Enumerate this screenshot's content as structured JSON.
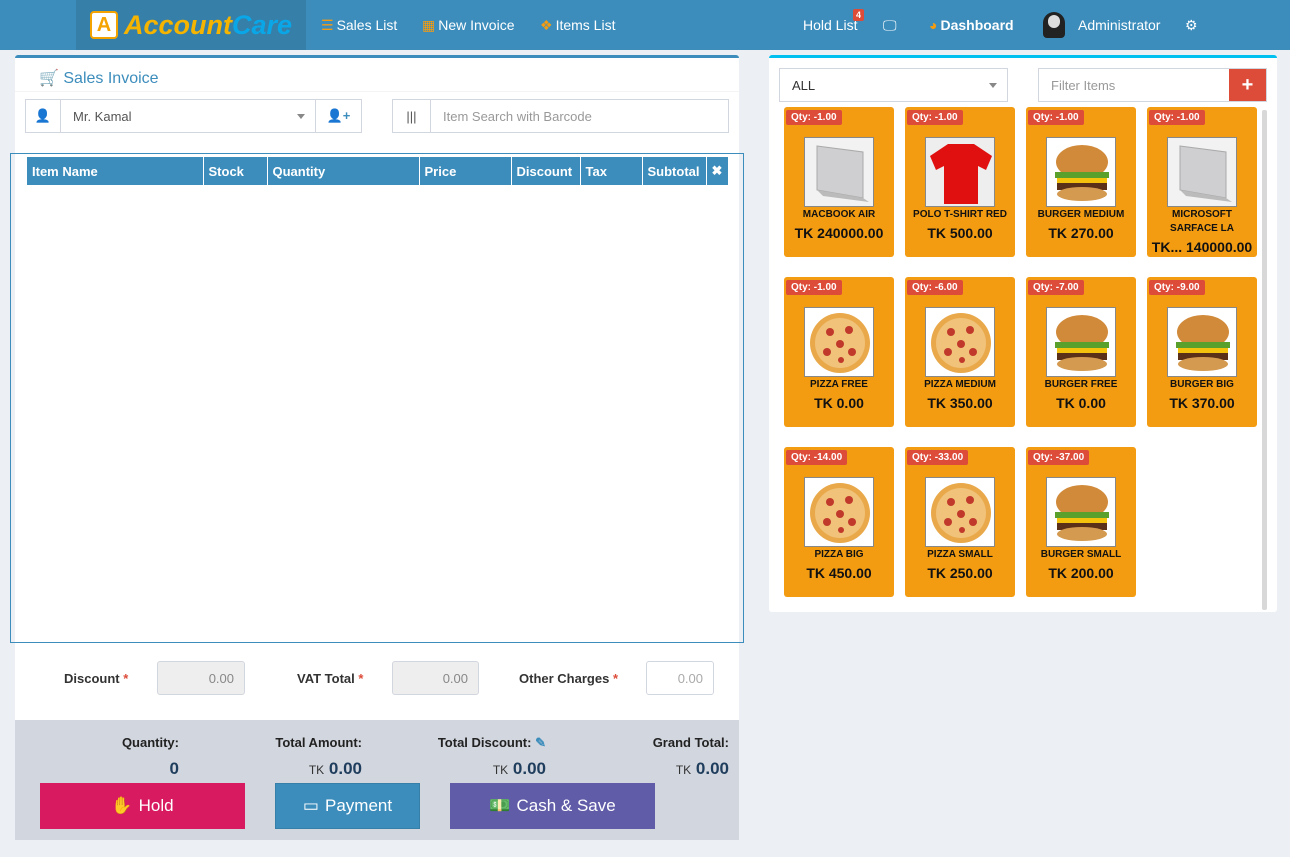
{
  "app": {
    "logo_a": "Account",
    "logo_b": "Care"
  },
  "nav": {
    "sales_list": "Sales List",
    "new_invoice": "New Invoice",
    "items_list": "Items List",
    "hold_list": "Hold List",
    "hold_count": "4",
    "dashboard": "Dashboard",
    "user": "Administrator"
  },
  "invoice": {
    "title": "Sales Invoice",
    "customer": "Mr. Kamal",
    "barcode_placeholder": "Item Search with Barcode",
    "columns": [
      "Item Name",
      "Stock",
      "Quantity",
      "Price",
      "Discount",
      "Tax",
      "Subtotal"
    ],
    "discount_label": "Discount",
    "discount": "0.00",
    "vat_label": "VAT Total",
    "vat": "0.00",
    "other_label": "Other Charges",
    "other_placeholder": "0.00",
    "quantity_label": "Quantity:",
    "quantity": "0",
    "total_amount_label": "Total Amount:",
    "total_amount": "0.00",
    "total_discount_label": "Total Discount:",
    "total_discount": "0.00",
    "grand_total_label": "Grand Total:",
    "grand_total": "0.00",
    "currency": "TK",
    "hold": "Hold",
    "payment": "Payment",
    "cash_save": "Cash & Save"
  },
  "items_panel": {
    "category": "ALL",
    "filter_placeholder": "Filter Items",
    "items": [
      {
        "qty": "Qty: -1.00",
        "name": "MACBOOK AIR",
        "price": "TK 240000.00",
        "image": "laptop"
      },
      {
        "qty": "Qty: -1.00",
        "name": "POLO T-SHIRT RED",
        "price": "TK 500.00",
        "image": "tshirt"
      },
      {
        "qty": "Qty: -1.00",
        "name": "BURGER MEDIUM",
        "price": "TK 270.00",
        "image": "burger"
      },
      {
        "qty": "Qty: -1.00",
        "name": "MICROSOFT SARFACE LA",
        "price": "TK... 140000.00",
        "image": "laptop"
      },
      {
        "qty": "Qty: -1.00",
        "name": "PIZZA FREE",
        "price": "TK 0.00",
        "image": "pizza"
      },
      {
        "qty": "Qty: -6.00",
        "name": "PIZZA MEDIUM",
        "price": "TK 350.00",
        "image": "pizza"
      },
      {
        "qty": "Qty: -7.00",
        "name": "BURGER FREE",
        "price": "TK 0.00",
        "image": "burger"
      },
      {
        "qty": "Qty: -9.00",
        "name": "BURGER BIG",
        "price": "TK 370.00",
        "image": "burger"
      },
      {
        "qty": "Qty: -14.00",
        "name": "PIZZA BIG",
        "price": "TK 450.00",
        "image": "pizza"
      },
      {
        "qty": "Qty: -33.00",
        "name": "PIZZA SMALL",
        "price": "TK 250.00",
        "image": "pizza"
      },
      {
        "qty": "Qty: -37.00",
        "name": "BURGER SMALL",
        "price": "TK 200.00",
        "image": "burger"
      }
    ]
  },
  "colors": {
    "primary": "#3c8dbc",
    "tile": "#f39c12",
    "danger": "#dd4b39",
    "hold": "#d81b60",
    "cash": "#605ca8"
  }
}
